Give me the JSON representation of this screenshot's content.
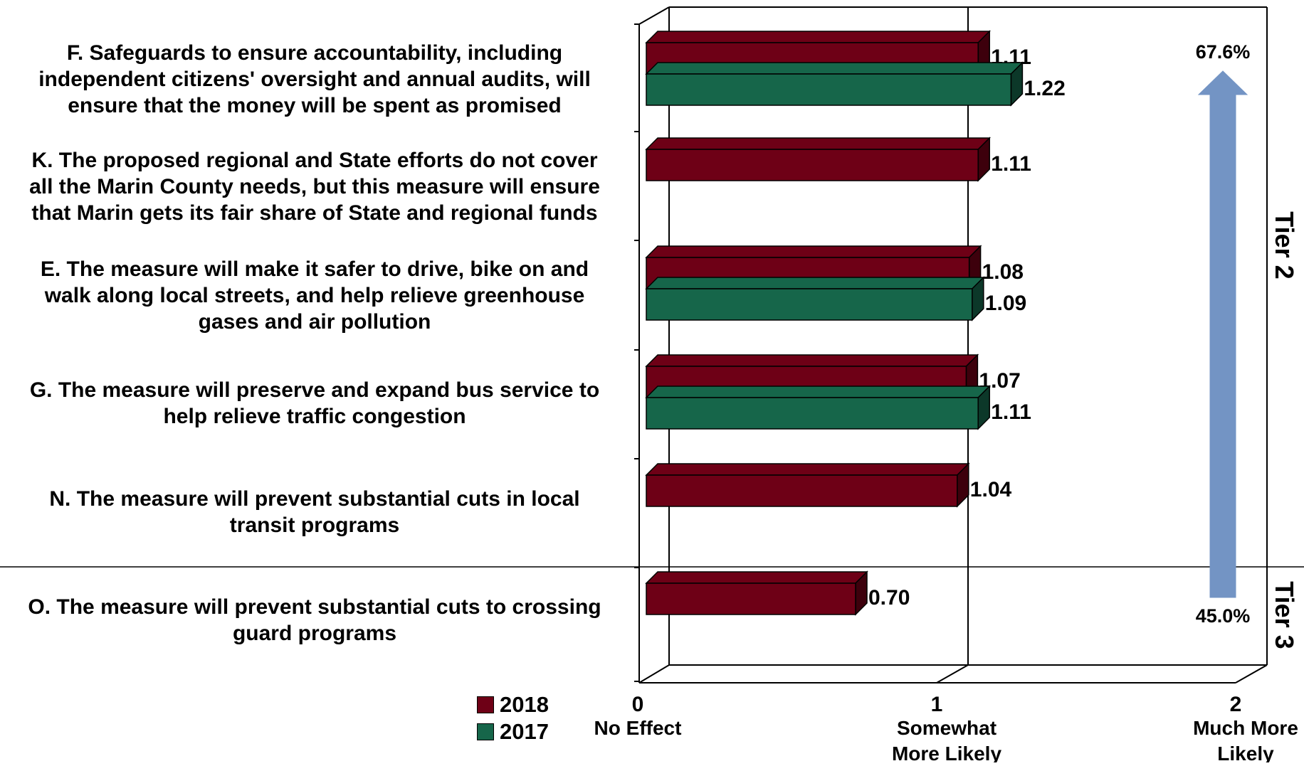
{
  "chart_data": {
    "type": "bar",
    "orientation": "horizontal",
    "categories": [
      "F. Safeguards to ensure accountability, including independent citizens' oversight and annual audits, will ensure that the money will be spent as promised",
      "K. The proposed regional and State efforts do not cover all the Marin County needs, but this measure will ensure that Marin gets its fair share of State and regional funds",
      "E. The measure will make it safer to drive, bike on and walk along local streets, and help relieve greenhouse gases and air pollution",
      "G. The measure will preserve and expand bus service to help relieve traffic congestion",
      "N. The measure will prevent substantial cuts in local transit programs",
      "O. The measure will prevent substantial cuts to crossing guard programs"
    ],
    "category_lines": [
      [
        "F. Safeguards to ensure accountability, including",
        "independent citizens' oversight and annual audits, will",
        "ensure that the money will be spent as promised"
      ],
      [
        "K. The proposed regional and State efforts do not cover",
        "all the Marin County needs, but this measure will ensure",
        "that Marin gets its fair share of State and regional funds"
      ],
      [
        "E. The measure will make it safer to drive, bike on and",
        "walk along local streets, and help relieve greenhouse",
        "gases and air pollution"
      ],
      [
        "G. The measure will preserve and expand bus service to",
        "help relieve traffic congestion"
      ],
      [
        "N. The measure will prevent substantial cuts in local",
        "transit programs"
      ],
      [
        "O. The measure will prevent substantial cuts to crossing",
        "guard programs"
      ]
    ],
    "series": [
      {
        "name": "2018",
        "color": "#6e0016",
        "values": [
          1.11,
          1.11,
          1.08,
          1.07,
          1.04,
          0.7
        ],
        "labels": [
          "1.11",
          "1.11",
          "1.08",
          "1.07",
          "1.04",
          "0.70"
        ]
      },
      {
        "name": "2017",
        "color": "#16664a",
        "values": [
          1.22,
          null,
          1.09,
          1.11,
          null,
          null
        ],
        "labels": [
          "1.22",
          "",
          "1.09",
          "1.11",
          "",
          ""
        ]
      }
    ],
    "xlim": [
      0,
      2
    ],
    "x_ticks": [
      {
        "value": 0,
        "number": "0",
        "lines": [
          "No Effect"
        ]
      },
      {
        "value": 1,
        "number": "1",
        "lines": [
          "Somewhat",
          "More  Likely"
        ]
      },
      {
        "value": 2,
        "number": "2",
        "lines": [
          "Much More",
          "Likely"
        ]
      }
    ],
    "legend": {
      "position": "bottom-left",
      "items": [
        "2018",
        "2017"
      ]
    },
    "tiers": [
      {
        "label": "Tier 2",
        "first_index": 0,
        "last_index": 4
      },
      {
        "label": "Tier 3",
        "first_index": 5,
        "last_index": 5
      }
    ],
    "arrow": {
      "top_label": "67.6%",
      "bottom_label": "45.0%",
      "color": "#7394c4"
    },
    "style": "3d"
  }
}
